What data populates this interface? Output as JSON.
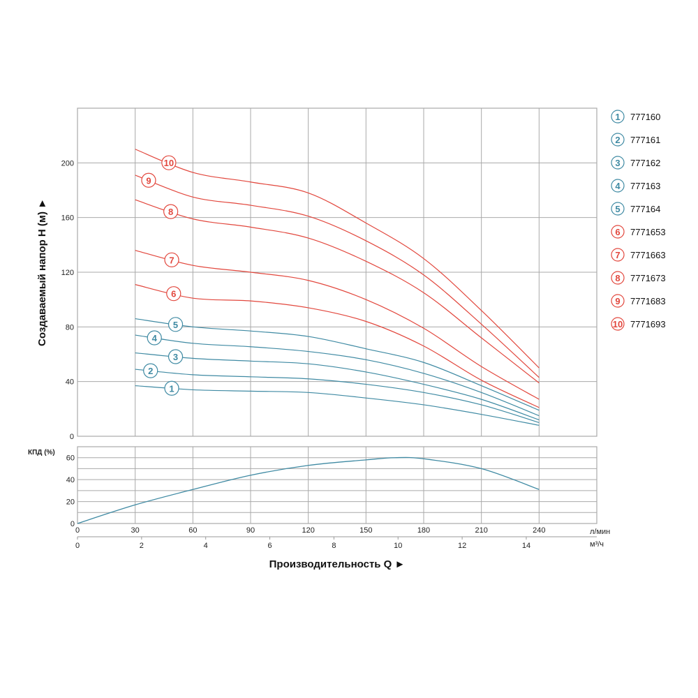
{
  "chart_data": [
    {
      "type": "line",
      "ylabel": "Создаваемый напор H (м) ►",
      "xlim": [
        0,
        270
      ],
      "ylim": [
        0,
        240
      ],
      "yticks": [
        0,
        40,
        80,
        120,
        160,
        200
      ],
      "xgrid": [
        30,
        60,
        90,
        120,
        150,
        180,
        210,
        240
      ],
      "grid": true,
      "legend_position": "right",
      "x": [
        30,
        60,
        90,
        120,
        150,
        180,
        210,
        240
      ],
      "colors": {
        "blue": "#3f8aa3",
        "red": "#e2473d"
      },
      "series": [
        {
          "label": "1",
          "name": "777160",
          "color": "blue",
          "values": [
            37,
            34,
            33,
            32,
            28,
            23,
            16,
            8
          ]
        },
        {
          "label": "2",
          "name": "777161",
          "color": "blue",
          "values": [
            49,
            45,
            43.5,
            42,
            38,
            32,
            23,
            10
          ]
        },
        {
          "label": "3",
          "name": "777162",
          "color": "blue",
          "values": [
            61,
            57,
            55,
            53,
            47,
            38,
            27,
            12
          ]
        },
        {
          "label": "4",
          "name": "777163",
          "color": "blue",
          "values": [
            74,
            68,
            65.5,
            62,
            56,
            46,
            32,
            15
          ]
        },
        {
          "label": "5",
          "name": "777164",
          "color": "blue",
          "values": [
            86,
            80,
            77,
            73,
            64,
            54,
            37,
            19
          ]
        },
        {
          "label": "6",
          "name": "7771653",
          "color": "red",
          "values": [
            111,
            101,
            99,
            94,
            84,
            66,
            41,
            21
          ]
        },
        {
          "label": "7",
          "name": "7771663",
          "color": "red",
          "values": [
            136,
            125,
            120,
            114,
            100,
            79,
            51,
            27
          ]
        },
        {
          "label": "8",
          "name": "7771673",
          "color": "red",
          "values": [
            173,
            159,
            153,
            145,
            128,
            105,
            72,
            39
          ]
        },
        {
          "label": "9",
          "name": "7771683",
          "color": "red",
          "values": [
            191,
            175,
            169,
            161,
            143,
            118,
            82,
            43
          ]
        },
        {
          "label": "10",
          "name": "7771693",
          "color": "red",
          "values": [
            210,
            193,
            186,
            178,
            156,
            130,
            92,
            50
          ]
        }
      ]
    },
    {
      "type": "line",
      "ylabel": "КПД (%)",
      "xlabel": "Производительность Q ►",
      "xlim": [
        0,
        270
      ],
      "ylim": [
        0,
        70
      ],
      "yticks": [
        0,
        20,
        40,
        60
      ],
      "ygrid": [
        10,
        20,
        30,
        40,
        50,
        60
      ],
      "grid": true,
      "x_unit": "л/мин",
      "xticks": [
        0,
        30,
        60,
        90,
        120,
        150,
        180,
        210,
        240
      ],
      "x2_unit": "м³/ч",
      "x2ticks": [
        0,
        2,
        4,
        6,
        8,
        10,
        12,
        14
      ],
      "color": "#3f8aa3",
      "x": [
        0,
        30,
        60,
        90,
        120,
        150,
        165,
        180,
        210,
        240
      ],
      "values": [
        0,
        17,
        31,
        44,
        53,
        58,
        60,
        59,
        50,
        31
      ]
    }
  ]
}
